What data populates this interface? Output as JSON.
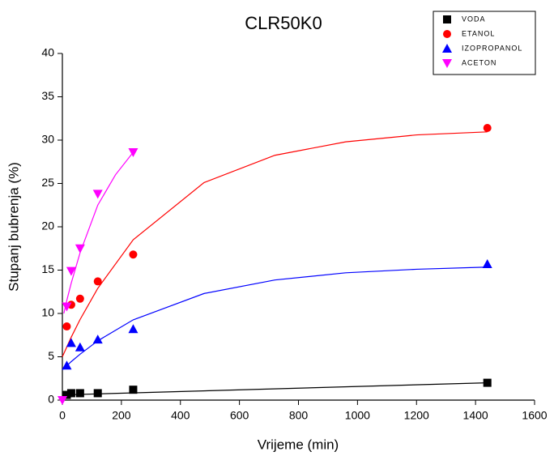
{
  "chart_data": {
    "type": "scatter",
    "title": "CLR50K0",
    "x_label": "Vrijeme (min)",
    "y_label": "Stupanj bubrenja (%)",
    "xlim": [
      0,
      1600
    ],
    "xticks": [
      0,
      200,
      400,
      600,
      800,
      1000,
      1200,
      1400,
      1600
    ],
    "ylim": [
      0,
      40
    ],
    "yticks": [
      0,
      5,
      10,
      15,
      20,
      25,
      30,
      35,
      40
    ],
    "legend": "upper right",
    "series": [
      {
        "name": "VODA",
        "color": "#000000",
        "marker": "square",
        "x": [
          15,
          30,
          60,
          120,
          240,
          1440
        ],
        "values": [
          0.6,
          0.8,
          0.8,
          0.8,
          1.2,
          2.0
        ],
        "fit": {
          "x": [
            0,
            1440
          ],
          "values": [
            0.6,
            2.0
          ]
        }
      },
      {
        "name": "ETANOL",
        "color": "#ff0000",
        "marker": "circle",
        "x": [
          15,
          30,
          60,
          120,
          240,
          1440
        ],
        "values": [
          8.5,
          11,
          11.7,
          13.7,
          16.8,
          31.4
        ],
        "fit": {
          "x": [
            0,
            30,
            60,
            120,
            240,
            480,
            720,
            960,
            1200,
            1440
          ],
          "values": [
            5,
            7.26,
            9.3,
            12.9,
            18.5,
            25.1,
            28.25,
            29.8,
            30.6,
            30.95
          ]
        }
      },
      {
        "name": "IZOPROPANOL",
        "color": "#0000ff",
        "marker": "triangle-up",
        "x": [
          15,
          30,
          60,
          120,
          240,
          1440
        ],
        "values": [
          4,
          6.6,
          6.1,
          7,
          8.2,
          15.7
        ],
        "fit": {
          "x": [
            0,
            30,
            60,
            120,
            240,
            480,
            720,
            960,
            1200,
            1440
          ],
          "values": [
            3.5,
            4.44,
            5.3,
            6.84,
            9.26,
            12.3,
            13.86,
            14.69,
            15.1,
            15.35
          ]
        }
      },
      {
        "name": "ACETON",
        "color": "#ff00ff",
        "marker": "triangle-down",
        "x": [
          0,
          15,
          30,
          60,
          120,
          240
        ],
        "values": [
          0,
          10.8,
          14.9,
          17.5,
          23.8,
          28.6
        ],
        "fit": {
          "x": [
            5,
            15,
            30,
            60,
            120,
            180,
            240
          ],
          "values": [
            10,
            11.5,
            13.5,
            17,
            22.5,
            26,
            28.6
          ]
        }
      }
    ]
  }
}
